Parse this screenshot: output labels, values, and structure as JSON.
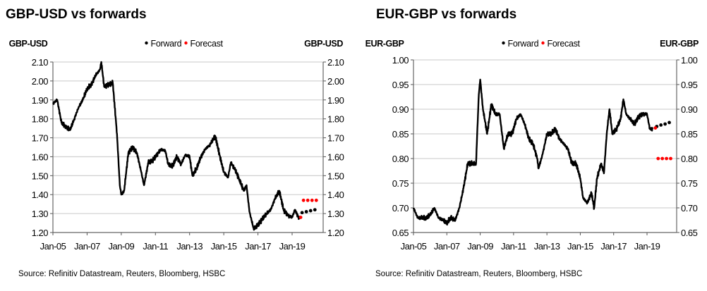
{
  "chart_data": [
    {
      "type": "line",
      "title": "GBP-USD vs forwards",
      "ylabel_left": "GBP-USD",
      "ylabel_right": "GBP-USD",
      "source": "Source: Refinitiv Datastream, Reuters, Bloomberg, HSBC",
      "ylim": [
        1.2,
        2.1
      ],
      "yticks": [
        "1.20",
        "1.30",
        "1.40",
        "1.50",
        "1.60",
        "1.70",
        "1.80",
        "1.90",
        "2.00",
        "2.10"
      ],
      "xticks": [
        "Jan-05",
        "Jan-07",
        "Jan-09",
        "Jan-11",
        "Jan-13",
        "Jan-15",
        "Jan-17",
        "Jan-19"
      ],
      "xlim": [
        "2005-01",
        "2020-10"
      ],
      "grid": true,
      "legend_position": "top-center",
      "legend": [
        {
          "label": "Forward",
          "color": "#000000"
        },
        {
          "label": "Forecast",
          "color": "#ff0000"
        }
      ],
      "spot": {
        "x": [
          "2005-01",
          "2005-04",
          "2005-07",
          "2005-10",
          "2006-01",
          "2006-04",
          "2006-07",
          "2006-10",
          "2007-01",
          "2007-04",
          "2007-07",
          "2007-10",
          "2007-11",
          "2008-01",
          "2008-04",
          "2008-07",
          "2008-10",
          "2008-12",
          "2009-01",
          "2009-03",
          "2009-06",
          "2009-09",
          "2009-12",
          "2010-03",
          "2010-05",
          "2010-08",
          "2010-11",
          "2011-02",
          "2011-05",
          "2011-08",
          "2011-10",
          "2012-01",
          "2012-04",
          "2012-07",
          "2012-10",
          "2013-01",
          "2013-03",
          "2013-06",
          "2013-09",
          "2013-12",
          "2014-03",
          "2014-07",
          "2014-10",
          "2015-01",
          "2015-04",
          "2015-06",
          "2015-09",
          "2015-12",
          "2016-03",
          "2016-05",
          "2016-07",
          "2016-10",
          "2017-01",
          "2017-04",
          "2017-07",
          "2017-10",
          "2018-01",
          "2018-04",
          "2018-07",
          "2018-10",
          "2019-01",
          "2019-03",
          "2019-06"
        ],
        "y": [
          1.88,
          1.9,
          1.78,
          1.76,
          1.74,
          1.8,
          1.86,
          1.9,
          1.96,
          1.98,
          2.03,
          2.06,
          2.1,
          1.97,
          1.98,
          1.99,
          1.72,
          1.45,
          1.4,
          1.42,
          1.62,
          1.65,
          1.62,
          1.52,
          1.45,
          1.57,
          1.58,
          1.61,
          1.64,
          1.63,
          1.56,
          1.55,
          1.6,
          1.56,
          1.61,
          1.6,
          1.5,
          1.54,
          1.6,
          1.64,
          1.66,
          1.71,
          1.61,
          1.52,
          1.49,
          1.57,
          1.53,
          1.48,
          1.42,
          1.45,
          1.31,
          1.22,
          1.24,
          1.27,
          1.3,
          1.32,
          1.38,
          1.42,
          1.32,
          1.29,
          1.28,
          1.32,
          1.27
        ]
      },
      "forward": {
        "x": [
          "2019-08",
          "2019-11",
          "2020-02",
          "2020-05"
        ],
        "y": [
          1.305,
          1.31,
          1.315,
          1.32
        ]
      },
      "forecast": {
        "x": [
          "2019-07",
          "2019-09",
          "2019-12",
          "2020-03",
          "2020-06"
        ],
        "y": [
          1.28,
          1.37,
          1.37,
          1.37,
          1.37
        ]
      }
    },
    {
      "type": "line",
      "title": "EUR-GBP vs forwards",
      "ylabel_left": "EUR-GBP",
      "ylabel_right": "EUR-GBP",
      "source": "Source: Refinitiv Datastream, Reuters, Bloomberg, HSBC",
      "ylim": [
        0.65,
        1.0
      ],
      "yticks": [
        "0.65",
        "0.70",
        "0.75",
        "0.80",
        "0.85",
        "0.90",
        "0.95",
        "1.00"
      ],
      "xticks": [
        "Jan-05",
        "Jan-07",
        "Jan-09",
        "Jan-11",
        "Jan-13",
        "Jan-15",
        "Jan-17",
        "Jan-19"
      ],
      "xlim": [
        "2005-01",
        "2020-10"
      ],
      "grid": true,
      "legend_position": "top-center",
      "legend": [
        {
          "label": "Forward",
          "color": "#000000"
        },
        {
          "label": "Forecast",
          "color": "#ff0000"
        }
      ],
      "spot": {
        "x": [
          "2005-01",
          "2005-04",
          "2005-07",
          "2005-10",
          "2006-01",
          "2006-04",
          "2006-07",
          "2006-10",
          "2007-01",
          "2007-04",
          "2007-07",
          "2007-10",
          "2008-01",
          "2008-04",
          "2008-07",
          "2008-10",
          "2008-12",
          "2009-01",
          "2009-03",
          "2009-06",
          "2009-09",
          "2009-12",
          "2010-03",
          "2010-06",
          "2010-09",
          "2010-12",
          "2011-03",
          "2011-06",
          "2011-09",
          "2011-12",
          "2012-03",
          "2012-06",
          "2012-07",
          "2012-10",
          "2013-01",
          "2013-04",
          "2013-07",
          "2013-10",
          "2014-01",
          "2014-04",
          "2014-07",
          "2014-10",
          "2015-01",
          "2015-03",
          "2015-06",
          "2015-09",
          "2015-11",
          "2016-01",
          "2016-04",
          "2016-06",
          "2016-08",
          "2016-10",
          "2016-12",
          "2017-03",
          "2017-06",
          "2017-08",
          "2017-10",
          "2018-01",
          "2018-04",
          "2018-07",
          "2018-10",
          "2019-01",
          "2019-03",
          "2019-05"
        ],
        "y": [
          0.7,
          0.68,
          0.68,
          0.68,
          0.685,
          0.7,
          0.68,
          0.675,
          0.67,
          0.68,
          0.675,
          0.7,
          0.74,
          0.79,
          0.79,
          0.79,
          0.93,
          0.96,
          0.9,
          0.85,
          0.91,
          0.89,
          0.89,
          0.82,
          0.85,
          0.85,
          0.88,
          0.89,
          0.87,
          0.84,
          0.83,
          0.8,
          0.78,
          0.81,
          0.85,
          0.85,
          0.86,
          0.84,
          0.83,
          0.82,
          0.79,
          0.79,
          0.76,
          0.72,
          0.71,
          0.73,
          0.7,
          0.76,
          0.79,
          0.77,
          0.85,
          0.9,
          0.85,
          0.86,
          0.88,
          0.92,
          0.89,
          0.88,
          0.87,
          0.885,
          0.89,
          0.89,
          0.86,
          0.86
        ]
      },
      "forward": {
        "x": [
          "2019-08",
          "2019-11",
          "2020-02",
          "2020-05"
        ],
        "y": [
          0.865,
          0.868,
          0.87,
          0.873
        ]
      },
      "forecast": {
        "x": [
          "2019-07",
          "2019-09",
          "2019-12",
          "2020-03",
          "2020-06"
        ],
        "y": [
          0.862,
          0.8,
          0.8,
          0.8,
          0.8
        ]
      }
    }
  ]
}
